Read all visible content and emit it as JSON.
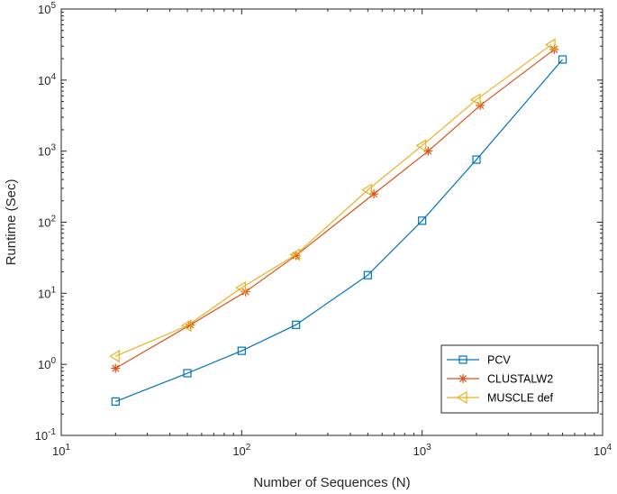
{
  "chart_data": {
    "type": "line",
    "xscale": "log",
    "yscale": "log",
    "xlim": [
      10,
      10000
    ],
    "ylim": [
      0.1,
      100000
    ],
    "xlabel": "Number of Sequences (N)",
    "ylabel": "Runtime (Sec)",
    "x_ticks": [
      {
        "base": "10",
        "exp": "1"
      },
      {
        "base": "10",
        "exp": "2"
      },
      {
        "base": "10",
        "exp": "3"
      },
      {
        "base": "10",
        "exp": "4"
      }
    ],
    "y_ticks": [
      {
        "base": "10",
        "exp": "-1"
      },
      {
        "base": "10",
        "exp": "0"
      },
      {
        "base": "10",
        "exp": "1"
      },
      {
        "base": "10",
        "exp": "2"
      },
      {
        "base": "10",
        "exp": "3"
      },
      {
        "base": "10",
        "exp": "4"
      },
      {
        "base": "10",
        "exp": "5"
      }
    ],
    "grid": false,
    "legend_position": "bottom-right",
    "series": [
      {
        "name": "PCV",
        "color": "#0072BD",
        "marker": "square",
        "x": [
          20,
          50,
          100,
          200,
          500,
          1000,
          2000,
          6000
        ],
        "y": [
          0.3,
          0.75,
          1.55,
          3.6,
          18,
          105,
          760,
          19500
        ]
      },
      {
        "name": "CLUSTALW2",
        "color": "#D95319",
        "marker": "asterisk",
        "x": [
          20,
          52,
          105,
          200,
          540,
          1080,
          2100,
          5400
        ],
        "y": [
          0.88,
          3.6,
          10.5,
          34,
          250,
          1000,
          4400,
          27000
        ]
      },
      {
        "name": "MUSCLE def",
        "color": "#EDB120",
        "marker": "triangle-left",
        "x": [
          20,
          50,
          100,
          200,
          500,
          1000,
          2000,
          5200
        ],
        "y": [
          1.3,
          3.5,
          12,
          35,
          285,
          1200,
          5300,
          31500
        ]
      }
    ]
  }
}
